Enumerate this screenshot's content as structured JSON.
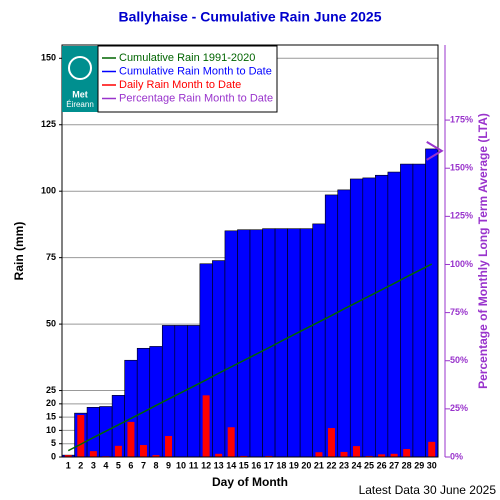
{
  "chart_data": {
    "type": "bar",
    "title": "Ballyhaise - Cumulative Rain June   2025",
    "x_label": "Day of Month",
    "y_label": "Rain (mm)",
    "y2_label": "Percentage  of Monthly Long Term Average (LTA)",
    "footer": "Latest Data 30 June 2025",
    "logo": {
      "line1": "Met",
      "line2": "Éireann"
    },
    "categories": [
      "1",
      "2",
      "3",
      "4",
      "5",
      "6",
      "7",
      "8",
      "9",
      "10",
      "11",
      "12",
      "13",
      "14",
      "15",
      "16",
      "17",
      "18",
      "19",
      "20",
      "21",
      "22",
      "23",
      "24",
      "25",
      "26",
      "27",
      "28",
      "29",
      "30"
    ],
    "ylim": [
      0,
      155
    ],
    "yticks": [
      0,
      5,
      10,
      15,
      20,
      25,
      50,
      75,
      100,
      125,
      150
    ],
    "y2lim": [
      0,
      214
    ],
    "y2ticks": [
      {
        "value": 0,
        "label": "0%"
      },
      {
        "value": 25,
        "label": "25%"
      },
      {
        "value": 50,
        "label": "50%"
      },
      {
        "value": 75,
        "label": "75%"
      },
      {
        "value": 100,
        "label": "100%"
      },
      {
        "value": 125,
        "label": "125%"
      },
      {
        "value": 150,
        "label": "150%"
      },
      {
        "value": 175,
        "label": "175%"
      }
    ],
    "grid": true,
    "series": [
      {
        "name": "Cumulative Rain 1991-2020",
        "color": "#006400",
        "type": "line",
        "values": [
          2.4,
          4.8,
          7.3,
          9.7,
          12.1,
          14.5,
          16.9,
          19.4,
          21.8,
          24.2,
          26.6,
          29.0,
          31.5,
          33.9,
          36.3,
          38.7,
          41.1,
          43.6,
          46.0,
          48.4,
          50.8,
          53.2,
          55.7,
          58.1,
          60.5,
          62.9,
          65.3,
          67.8,
          70.2,
          72.6
        ]
      },
      {
        "name": "Cumulative Rain Month to Date",
        "color": "#0000ff",
        "type": "bar",
        "values": [
          0.7,
          16.5,
          18.7,
          19.0,
          23.2,
          36.4,
          40.9,
          41.6,
          49.5,
          49.5,
          49.5,
          72.7,
          73.9,
          85.1,
          85.5,
          85.5,
          85.9,
          85.9,
          85.9,
          85.9,
          87.7,
          98.6,
          100.5,
          104.6,
          105.0,
          106.0,
          107.2,
          110.2,
          110.2,
          115.9
        ]
      },
      {
        "name": "Daily Rain Month to Date",
        "color": "#ff0000",
        "type": "narrow-bar",
        "values": [
          0.7,
          15.8,
          2.2,
          0.3,
          4.2,
          13.2,
          4.5,
          0.7,
          7.9,
          0,
          0,
          23.2,
          1.2,
          11.2,
          0.4,
          0,
          0.4,
          0,
          0,
          0,
          1.8,
          10.9,
          1.9,
          4.1,
          0.4,
          1.0,
          1.2,
          3.0,
          0,
          5.7
        ]
      },
      {
        "name": "Percentage Rain Month to Date",
        "color": "#9933cc",
        "type": "marker",
        "axis": "y2",
        "values": [
          null,
          null,
          null,
          null,
          null,
          null,
          null,
          null,
          null,
          null,
          null,
          null,
          null,
          null,
          null,
          null,
          null,
          null,
          null,
          null,
          null,
          null,
          null,
          null,
          null,
          null,
          null,
          null,
          null,
          159
        ]
      }
    ]
  }
}
